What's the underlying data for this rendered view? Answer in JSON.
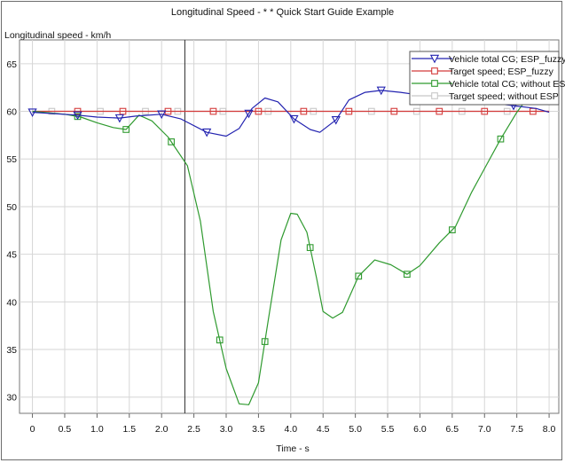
{
  "chart_data": {
    "type": "line",
    "title": "Longitudinal Speed - * * Quick Start Guide Example",
    "ylabel": "Longitudinal speed - km/h",
    "xlabel": "Time - s",
    "xlim": [
      -0.2,
      8.15
    ],
    "ylim": [
      28.3,
      67.5
    ],
    "xticks": [
      "0",
      "0.5",
      "1.0",
      "1.5",
      "2.0",
      "2.5",
      "3.0",
      "3.5",
      "4.0",
      "4.5",
      "5.0",
      "5.5",
      "6.0",
      "6.5",
      "7.0",
      "7.5",
      "8.0"
    ],
    "yticks": [
      "30",
      "35",
      "40",
      "45",
      "50",
      "55",
      "60",
      "65"
    ],
    "grid": true,
    "legend_position": "top-right",
    "cursor_x": 2.36,
    "series": [
      {
        "name": "Vehicle total CG; ESP_fuzzy",
        "color": "#2323b0",
        "marker": "triangle-down",
        "points": [
          [
            0,
            59.9
          ],
          [
            0.7,
            59.6
          ],
          [
            1.0,
            59.4
          ],
          [
            1.35,
            59.3
          ],
          [
            1.6,
            59.5
          ],
          [
            2.0,
            59.7
          ],
          [
            2.3,
            59.2
          ],
          [
            2.7,
            57.8
          ],
          [
            3.0,
            57.4
          ],
          [
            3.2,
            58.2
          ],
          [
            3.4,
            60.3
          ],
          [
            3.6,
            61.4
          ],
          [
            3.8,
            61.0
          ],
          [
            4.05,
            59.2
          ],
          [
            4.3,
            58.1
          ],
          [
            4.45,
            57.8
          ],
          [
            4.7,
            59.1
          ],
          [
            4.9,
            61.2
          ],
          [
            5.15,
            62.0
          ],
          [
            5.4,
            62.2
          ],
          [
            5.7,
            62.0
          ],
          [
            5.9,
            61.8
          ],
          [
            6.2,
            61.7
          ],
          [
            6.5,
            61.6
          ],
          [
            6.8,
            61.1
          ],
          [
            7.1,
            60.9
          ],
          [
            7.45,
            60.6
          ],
          [
            7.8,
            60.3
          ],
          [
            8.0,
            59.9
          ]
        ],
        "marker_x": [
          0,
          0.7,
          1.35,
          2.0,
          2.7,
          3.35,
          4.05,
          4.7,
          5.4,
          6.75,
          7.45
        ]
      },
      {
        "name": "Target speed; ESP_fuzzy",
        "color": "#d43b3b",
        "marker": "square",
        "points": [
          [
            0,
            60.0
          ],
          [
            8.0,
            60.0
          ]
        ],
        "marker_x": [
          0.7,
          1.4,
          2.1,
          2.8,
          3.5,
          4.2,
          4.9,
          5.6,
          6.3,
          7.0,
          7.75
        ]
      },
      {
        "name": "Vehicle total CG; without ESP",
        "color": "#2f9a2f",
        "marker": "square",
        "points": [
          [
            0,
            60.0
          ],
          [
            0.5,
            59.7
          ],
          [
            0.75,
            59.4
          ],
          [
            1.0,
            58.8
          ],
          [
            1.25,
            58.3
          ],
          [
            1.45,
            58.1
          ],
          [
            1.65,
            59.6
          ],
          [
            1.85,
            59.0
          ],
          [
            2.1,
            57.3
          ],
          [
            2.4,
            54.3
          ],
          [
            2.6,
            48.5
          ],
          [
            2.8,
            39.0
          ],
          [
            3.0,
            33.0
          ],
          [
            3.2,
            29.3
          ],
          [
            3.35,
            29.2
          ],
          [
            3.5,
            31.5
          ],
          [
            3.65,
            38.0
          ],
          [
            3.85,
            46.5
          ],
          [
            4.0,
            49.3
          ],
          [
            4.1,
            49.2
          ],
          [
            4.25,
            47.3
          ],
          [
            4.4,
            42.5
          ],
          [
            4.5,
            39.0
          ],
          [
            4.65,
            38.3
          ],
          [
            4.8,
            38.9
          ],
          [
            5.05,
            42.7
          ],
          [
            5.3,
            44.4
          ],
          [
            5.55,
            43.9
          ],
          [
            5.8,
            42.9
          ],
          [
            6.0,
            43.8
          ],
          [
            6.3,
            46.2
          ],
          [
            6.55,
            47.9
          ],
          [
            6.8,
            51.5
          ],
          [
            7.0,
            54.0
          ],
          [
            7.25,
            57.1
          ],
          [
            7.5,
            59.9
          ],
          [
            7.62,
            61.0
          ]
        ],
        "marker_x": [
          0.7,
          1.45,
          2.15,
          2.9,
          3.6,
          4.3,
          5.05,
          5.8,
          6.5,
          7.25
        ]
      },
      {
        "name": "Target speed; without ESP",
        "color": "#c8c8c8",
        "marker": "square",
        "points": [
          [
            0,
            60.0
          ],
          [
            8.0,
            60.0
          ]
        ],
        "marker_x": [
          0.3,
          1.05,
          1.75,
          2.25,
          2.95,
          3.65,
          4.35,
          5.25,
          5.95,
          6.65,
          7.35
        ]
      }
    ]
  }
}
